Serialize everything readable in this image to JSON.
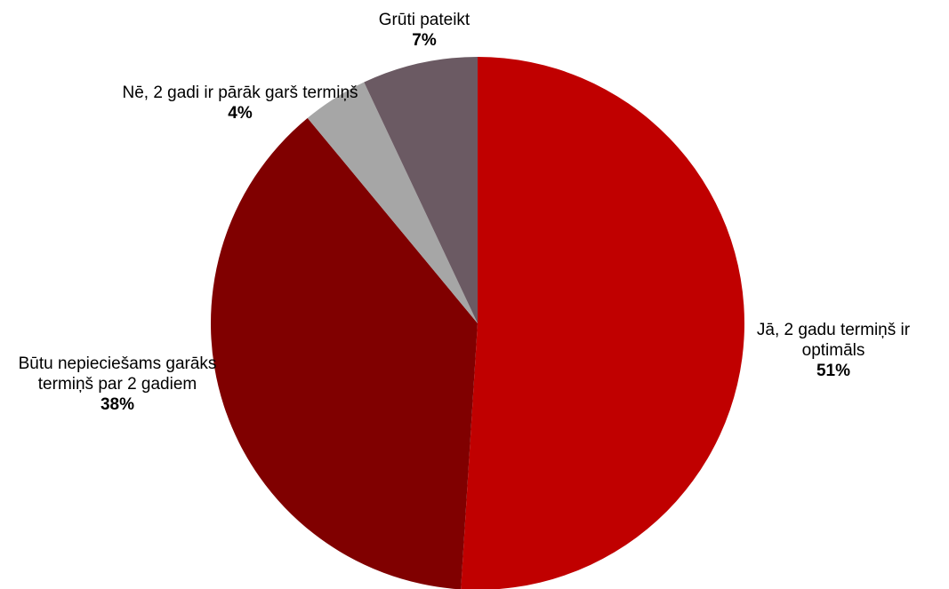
{
  "chart_data": {
    "type": "pie",
    "categories": [
      "Jā, 2 gadu termiņš ir optimāls",
      "Būtu nepieciešams garāks termiņš par 2 gadiem",
      "Nē, 2 gadi ir pārāk garš termiņš",
      "Grūti pateikt"
    ],
    "values": [
      51,
      38,
      4,
      7
    ],
    "value_labels": [
      "51%",
      "38%",
      "4%",
      "7%"
    ],
    "colors": [
      "#c00000",
      "#800000",
      "#a6a6a6",
      "#6b5a63"
    ]
  }
}
